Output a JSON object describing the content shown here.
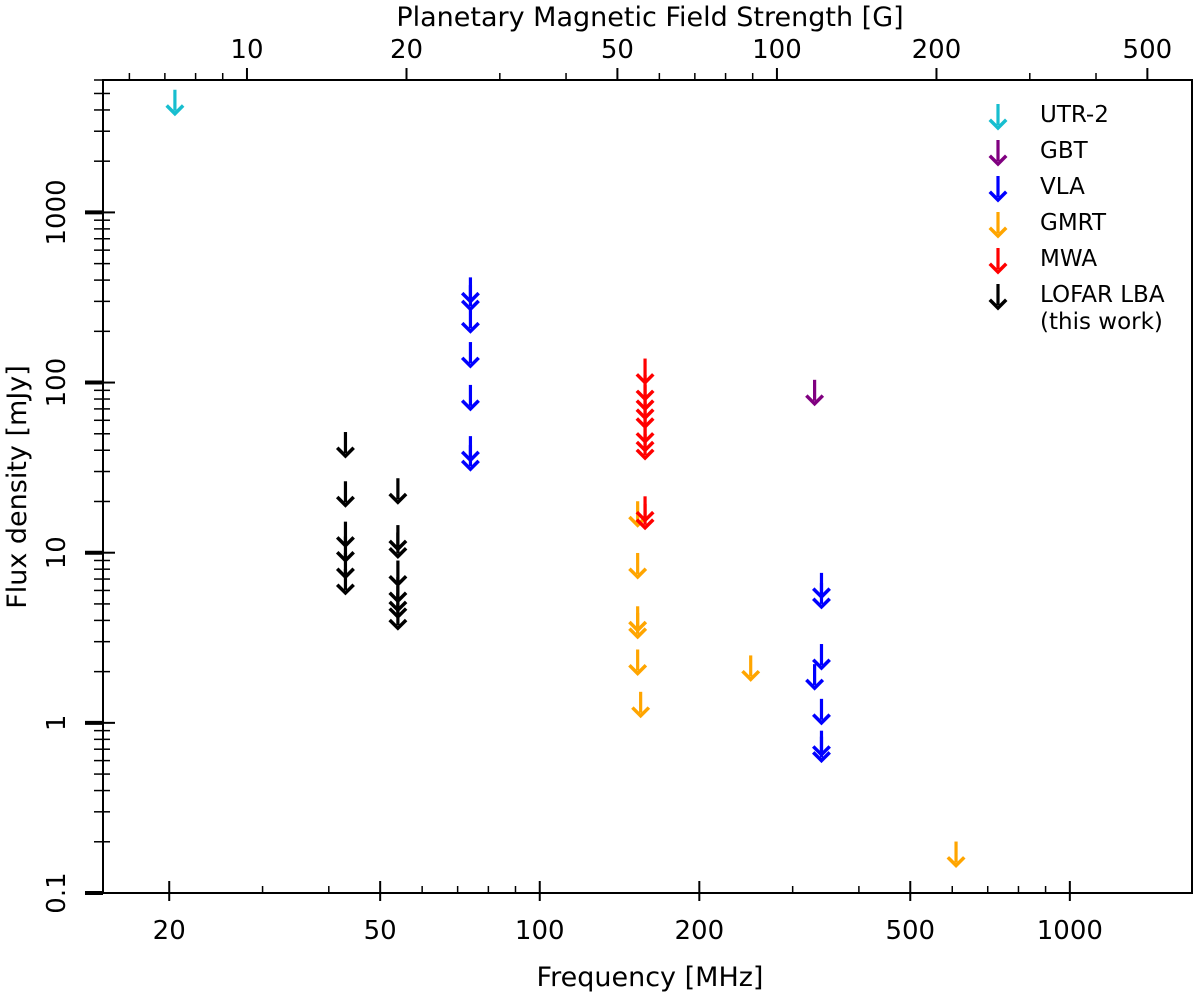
{
  "chart_data": {
    "type": "scatter",
    "marker": "upper-limit-arrow",
    "xlabel": "Frequency [MHz]",
    "ylabel": "Flux density [mJy]",
    "top_xlabel": "Planetary Magnetic Field Strength [G]",
    "xscale": "log",
    "yscale": "log",
    "xlim": [
      15,
      1700
    ],
    "ylim": [
      0.1,
      6000
    ],
    "top_xlim": [
      5.35,
      607
    ],
    "x_ticks": [
      20,
      50,
      100,
      200,
      500,
      1000
    ],
    "x_tick_labels": [
      "20",
      "50",
      "100",
      "200",
      "500",
      "1000"
    ],
    "y_ticks": [
      0.1,
      1,
      10,
      100,
      1000
    ],
    "y_tick_labels": [
      "0.1",
      "1",
      "10",
      "100",
      "1000"
    ],
    "top_ticks": [
      10,
      20,
      50,
      100,
      200,
      500
    ],
    "top_tick_labels": [
      "10",
      "20",
      "50",
      "100",
      "200",
      "500"
    ],
    "legend_position": "top-right",
    "series": [
      {
        "name": "UTR-2",
        "color": "#17becf",
        "points": [
          [
            20.5,
            3800
          ]
        ]
      },
      {
        "name": "GBT",
        "color": "#800080",
        "points": [
          [
            330,
            75
          ]
        ]
      },
      {
        "name": "VLA",
        "color": "#0000ff",
        "points": [
          [
            74,
            300
          ],
          [
            74,
            270
          ],
          [
            74,
            200
          ],
          [
            74,
            125
          ],
          [
            74,
            70
          ],
          [
            74,
            35
          ],
          [
            74,
            31
          ],
          [
            340,
            5.5
          ],
          [
            340,
            4.8
          ],
          [
            340,
            2.1
          ],
          [
            330,
            1.6
          ],
          [
            340,
            1.0
          ],
          [
            340,
            0.65
          ],
          [
            340,
            0.6
          ]
        ]
      },
      {
        "name": "GMRT",
        "color": "#ffa500",
        "points": [
          [
            153,
            14.5
          ],
          [
            153,
            7.2
          ],
          [
            153,
            3.5
          ],
          [
            153,
            3.2
          ],
          [
            153,
            1.95
          ],
          [
            155,
            1.1
          ],
          [
            250,
            1.8
          ],
          [
            610,
            0.145
          ]
        ]
      },
      {
        "name": "MWA",
        "color": "#ff0000",
        "points": [
          [
            158,
            100
          ],
          [
            158,
            80
          ],
          [
            158,
            70
          ],
          [
            158,
            62
          ],
          [
            158,
            55
          ],
          [
            158,
            45
          ],
          [
            158,
            40
          ],
          [
            158,
            36
          ],
          [
            158,
            15.5
          ],
          [
            158,
            14
          ]
        ]
      },
      {
        "name": "LOFAR LBA\n(this work)",
        "color": "#000000",
        "points": [
          [
            43,
            37
          ],
          [
            43,
            19
          ],
          [
            43,
            11
          ],
          [
            43,
            9
          ],
          [
            43,
            7.2
          ],
          [
            43,
            5.8
          ],
          [
            54,
            19.8
          ],
          [
            54,
            10.5
          ],
          [
            54,
            9.5
          ],
          [
            54,
            6.5
          ],
          [
            54,
            5.2
          ],
          [
            54,
            4.6
          ],
          [
            54,
            4.2
          ],
          [
            54,
            3.6
          ]
        ]
      }
    ]
  }
}
